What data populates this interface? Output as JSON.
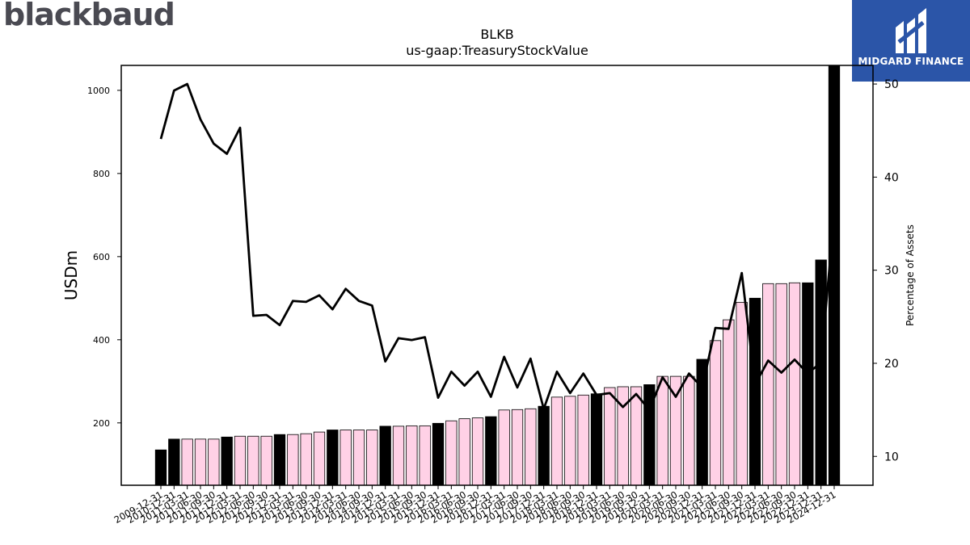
{
  "brand": {
    "left_logo": "blackbaud",
    "right_logo": "MIDGARD FINANCE",
    "right_bg": "#2b55a8"
  },
  "colors": {
    "bar_highlight": "#000000",
    "bar_normal": "#ffd1e6",
    "line": "#000000"
  },
  "chart_data": {
    "type": "bar",
    "title": "BLKB",
    "subtitle": "us-gaap:TreasuryStockValue",
    "ylabel": "USDm",
    "y2label": "Percentage of Assets",
    "ylim": [
      50,
      1060
    ],
    "y2lim": [
      6.9,
      52
    ],
    "yticks": [
      200,
      400,
      600,
      800,
      1000
    ],
    "y2ticks": [
      10,
      20,
      30,
      40,
      50
    ],
    "categories": [
      "2009-12-31",
      "2010-12-31",
      "2011-03-31",
      "2011-06-30",
      "2011-09-30",
      "2011-12-31",
      "2012-03-31",
      "2012-06-30",
      "2012-09-30",
      "2012-12-31",
      "2013-03-31",
      "2013-06-30",
      "2013-09-30",
      "2013-12-31",
      "2014-03-31",
      "2014-06-30",
      "2014-09-30",
      "2014-12-31",
      "2015-03-31",
      "2015-06-30",
      "2015-09-30",
      "2015-12-31",
      "2016-03-31",
      "2016-06-30",
      "2016-09-30",
      "2016-12-31",
      "2017-03-31",
      "2017-06-30",
      "2017-09-30",
      "2017-12-31",
      "2018-03-31",
      "2018-06-30",
      "2018-09-30",
      "2018-12-31",
      "2019-03-31",
      "2019-06-30",
      "2019-09-30",
      "2019-12-31",
      "2020-03-31",
      "2020-06-30",
      "2020-09-30",
      "2020-12-31",
      "2021-03-31",
      "2021-06-30",
      "2021-09-30",
      "2021-12-31",
      "2022-03-31",
      "2022-06-30",
      "2022-09-30",
      "2022-12-31",
      "2023-12-31",
      "2024-12-31"
    ],
    "highlight": [
      true,
      true,
      false,
      false,
      false,
      true,
      false,
      false,
      false,
      true,
      false,
      false,
      false,
      true,
      false,
      false,
      false,
      true,
      false,
      false,
      false,
      true,
      false,
      false,
      false,
      true,
      false,
      false,
      false,
      true,
      false,
      false,
      false,
      true,
      false,
      false,
      false,
      true,
      false,
      false,
      false,
      true,
      false,
      false,
      false,
      true,
      false,
      false,
      false,
      true,
      true,
      true
    ],
    "series": [
      {
        "values": [
          135,
          161,
          161,
          161,
          161,
          166,
          168,
          168,
          168,
          172,
          172,
          174,
          178,
          183,
          183,
          183,
          183,
          192,
          192,
          193,
          193,
          199,
          205,
          210,
          212,
          215,
          231,
          232,
          234,
          240,
          262,
          264,
          267,
          270,
          285,
          287,
          287,
          292,
          312,
          312,
          312,
          353,
          398,
          448,
          490,
          500,
          535,
          535,
          537,
          537,
          592,
          1060
        ]
      },
      {
        "values": [
          44.1,
          49.3,
          50.0,
          46.2,
          43.6,
          42.5,
          45.3,
          25.1,
          25.2,
          24.1,
          26.7,
          26.6,
          27.3,
          25.8,
          28.0,
          26.7,
          26.2,
          20.2,
          22.7,
          22.5,
          22.8,
          16.3,
          19.1,
          17.6,
          19.1,
          16.4,
          20.7,
          17.4,
          20.5,
          15.1,
          19.1,
          16.8,
          18.9,
          16.6,
          16.8,
          15.3,
          16.7,
          15.0,
          18.5,
          16.4,
          18.9,
          17.4,
          23.8,
          23.7,
          29.7,
          17.7,
          20.3,
          19.0,
          20.4,
          18.9,
          20.1,
          36.0
        ]
      }
    ]
  }
}
